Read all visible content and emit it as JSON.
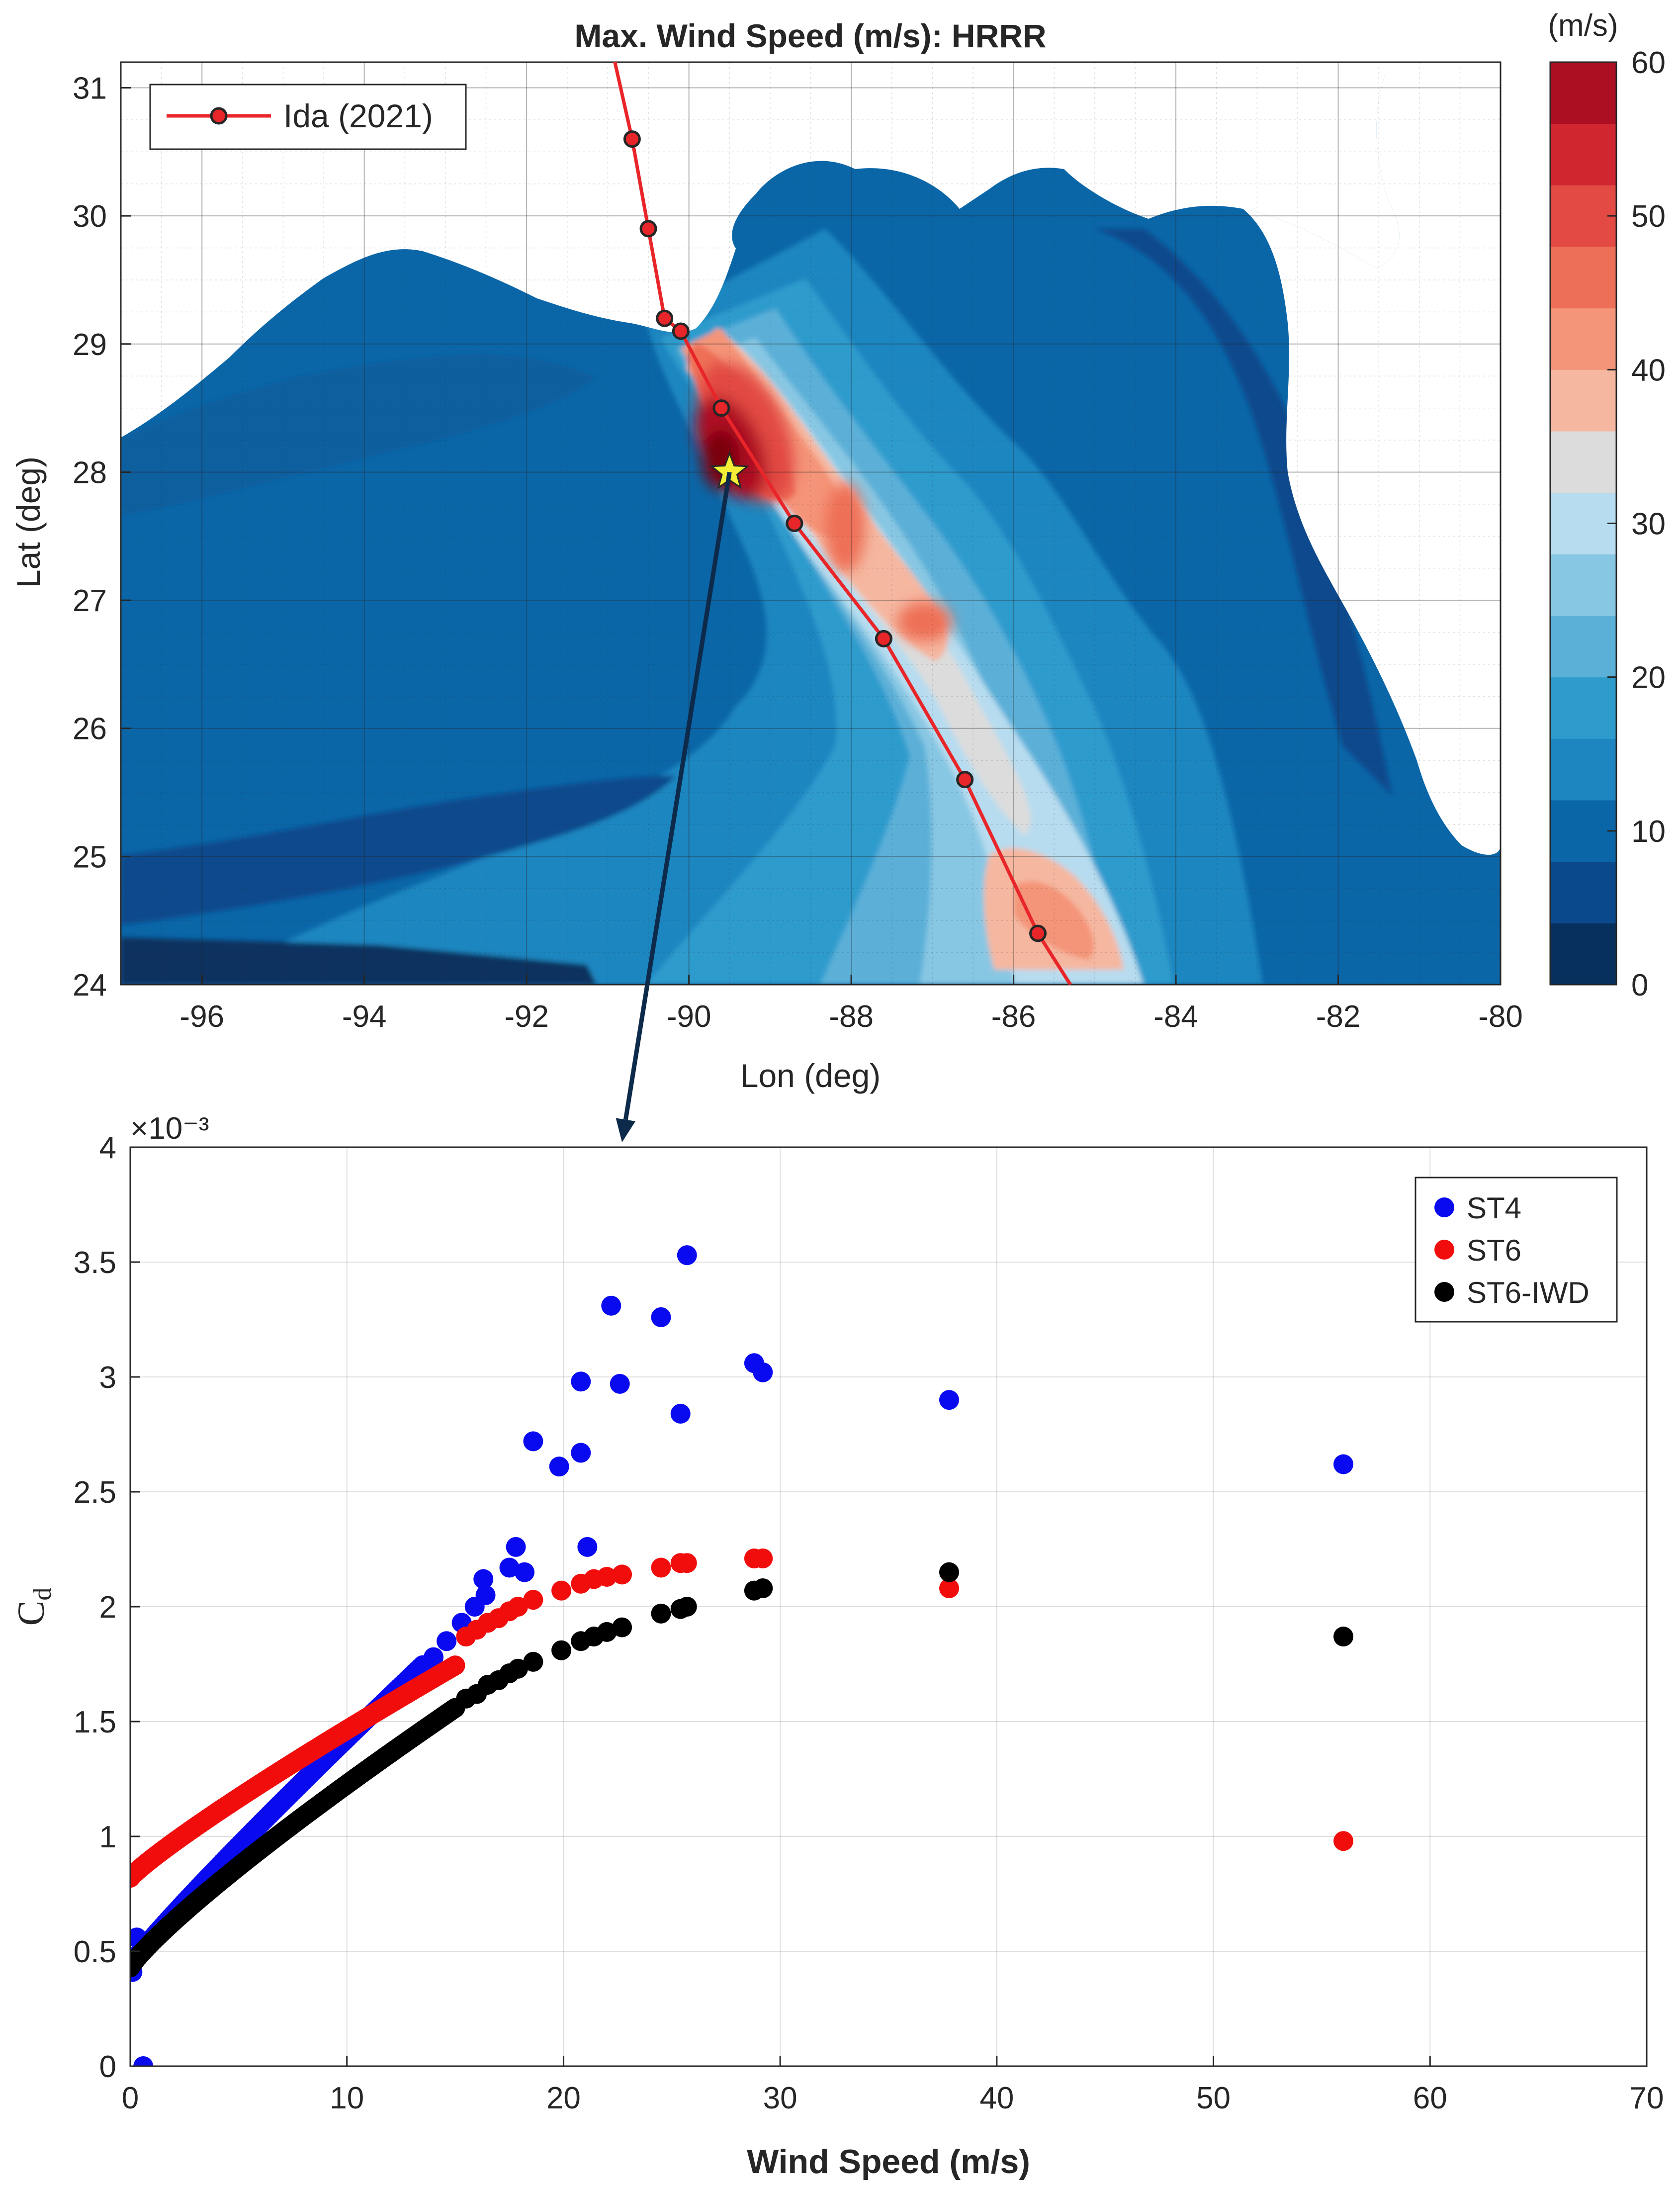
{
  "chart_data": [
    {
      "type": "heatmap",
      "title": "Max. Wind Speed (m/s): HRRR",
      "xlabel": "Lon (deg)",
      "ylabel": "Lat (deg)",
      "xlim": [
        -97,
        -80
      ],
      "ylim": [
        24,
        31.2
      ],
      "xticks": [
        -96,
        -94,
        -92,
        -90,
        -88,
        -86,
        -84,
        -82,
        -80
      ],
      "yticks": [
        24,
        25,
        26,
        27,
        28,
        29,
        30,
        31
      ],
      "xtick_labels": [
        "-96",
        "-94",
        "-92",
        "-90",
        "-88",
        "-86",
        "-84",
        "-82",
        "-80"
      ],
      "ytick_labels": [
        "24",
        "25",
        "26",
        "27",
        "28",
        "29",
        "30",
        "31"
      ],
      "grid": true,
      "colorbar": {
        "label": "(m/s)",
        "range": [
          0,
          60
        ],
        "step": 4,
        "ticks": [
          "0",
          "10",
          "20",
          "30",
          "40",
          "50",
          "60"
        ],
        "colors": [
          "#08305e",
          "#0a4a8c",
          "#0b66a8",
          "#1d86c0",
          "#2e9bcd",
          "#5bb0d8",
          "#88c7e3",
          "#b7dcef",
          "#dcdcdc",
          "#f5b7a0",
          "#f49478",
          "#ee6f57",
          "#e24a43",
          "#d0262f",
          "#ad0f22",
          "#7a0010"
        ]
      },
      "legend": {
        "label": "Ida (2021)",
        "placement": "top-left"
      },
      "track": {
        "name": "Ida (2021)",
        "line_color": "#e8262a",
        "lon": [
          -90.93,
          -90.7,
          -90.5,
          -90.3,
          -90.1,
          -89.6,
          -88.7,
          -87.6,
          -86.6,
          -85.7,
          -85.3
        ],
        "lat": [
          31.25,
          30.6,
          29.9,
          29.2,
          29.1,
          28.5,
          27.6,
          26.7,
          25.6,
          24.4,
          24.0
        ],
        "marker_points": [
          [
            -90.7,
            30.6
          ],
          [
            -90.5,
            29.9
          ],
          [
            -90.3,
            29.2
          ],
          [
            -90.1,
            29.1
          ],
          [
            -89.6,
            28.5
          ],
          [
            -88.7,
            27.6
          ],
          [
            -87.6,
            26.7
          ],
          [
            -86.6,
            25.6
          ],
          [
            -85.7,
            24.4
          ]
        ]
      },
      "star": {
        "lon": -89.5,
        "lat": 28.0,
        "color": "#f5ee36"
      },
      "land_color": "#ffffff",
      "ocean_base_color": "#0b66a8"
    },
    {
      "type": "scatter",
      "title": "",
      "xlabel": "Wind Speed (m/s)",
      "ylabel": "C",
      "ylabel_subscript": "d",
      "exponent_label": "×10⁻³",
      "xlim": [
        0,
        70
      ],
      "ylim": [
        0,
        4
      ],
      "xticks": [
        0,
        10,
        20,
        30,
        40,
        50,
        60,
        70
      ],
      "yticks": [
        0,
        0.5,
        1,
        1.5,
        2,
        2.5,
        3,
        3.5,
        4
      ],
      "xtick_labels": [
        "0",
        "10",
        "20",
        "30",
        "40",
        "50",
        "60",
        "70"
      ],
      "ytick_labels": [
        "0",
        "0.5",
        "1",
        "1.5",
        "2",
        "2.5",
        "3",
        "3.5",
        "4"
      ],
      "y_units_scale": 0.001,
      "grid": true,
      "legend_placement": "top-right",
      "series": [
        {
          "name": "ST4",
          "color": "#0a0af0",
          "curve_form": "0.44 + 0.116 * x^0.93, dense samples from 0 to 13.5 m/s",
          "curve_x_range": [
            0.3,
            13.5
          ],
          "scatter": [
            [
              0.1,
              0.41
            ],
            [
              0.3,
              0.56
            ],
            [
              0.6,
              0.0
            ],
            [
              13.2,
              1.66
            ],
            [
              14.0,
              1.78
            ],
            [
              14.6,
              1.85
            ],
            [
              15.3,
              1.93
            ],
            [
              15.9,
              2.0
            ],
            [
              16.3,
              2.12
            ],
            [
              16.4,
              2.05
            ],
            [
              17.5,
              2.17
            ],
            [
              17.8,
              2.26
            ],
            [
              18.2,
              2.15
            ],
            [
              18.6,
              2.72
            ],
            [
              19.8,
              2.61
            ],
            [
              20.8,
              2.98
            ],
            [
              20.8,
              2.67
            ],
            [
              21.1,
              2.26
            ],
            [
              22.2,
              3.31
            ],
            [
              22.6,
              2.97
            ],
            [
              24.5,
              3.26
            ],
            [
              25.4,
              2.84
            ],
            [
              25.7,
              3.53
            ],
            [
              28.8,
              3.06
            ],
            [
              29.2,
              3.02
            ],
            [
              37.8,
              2.9
            ],
            [
              56.0,
              2.62
            ]
          ]
        },
        {
          "name": "ST6",
          "color": "#f20d0d",
          "curve_form": "0.82 + 0.083 * x^0.89, dense samples from 0 to 15 m/s",
          "curve_x_range": [
            0.0,
            15.0
          ],
          "scatter": [
            [
              15.5,
              1.87
            ],
            [
              16.0,
              1.9
            ],
            [
              16.5,
              1.93
            ],
            [
              17.0,
              1.95
            ],
            [
              17.5,
              1.98
            ],
            [
              17.9,
              2.0
            ],
            [
              18.6,
              2.03
            ],
            [
              19.9,
              2.07
            ],
            [
              20.8,
              2.1
            ],
            [
              21.4,
              2.12
            ],
            [
              22.0,
              2.13
            ],
            [
              22.7,
              2.14
            ],
            [
              24.5,
              2.17
            ],
            [
              25.4,
              2.19
            ],
            [
              25.7,
              2.19
            ],
            [
              28.8,
              2.21
            ],
            [
              29.2,
              2.21
            ],
            [
              37.8,
              2.08
            ],
            [
              56.0,
              0.98
            ]
          ]
        },
        {
          "name": "ST6-IWD",
          "color": "#000000",
          "curve_form": "0.43 + 0.11 * x^0.86, dense samples from 0 to 15 m/s",
          "curve_x_range": [
            0.0,
            15.0
          ],
          "scatter": [
            [
              15.5,
              1.6
            ],
            [
              16.0,
              1.62
            ],
            [
              16.5,
              1.66
            ],
            [
              17.0,
              1.68
            ],
            [
              17.5,
              1.71
            ],
            [
              17.9,
              1.73
            ],
            [
              18.6,
              1.76
            ],
            [
              19.9,
              1.81
            ],
            [
              20.8,
              1.85
            ],
            [
              21.4,
              1.87
            ],
            [
              22.0,
              1.89
            ],
            [
              22.7,
              1.91
            ],
            [
              24.5,
              1.97
            ],
            [
              25.4,
              1.99
            ],
            [
              25.7,
              2.0
            ],
            [
              28.8,
              2.07
            ],
            [
              29.2,
              2.08
            ],
            [
              37.8,
              2.15
            ],
            [
              56.0,
              1.87
            ]
          ]
        }
      ]
    }
  ],
  "connector": {
    "color": "#0d2a4a",
    "from_lonlat": [
      -89.5,
      28.0
    ],
    "to_speed": 22.7
  }
}
